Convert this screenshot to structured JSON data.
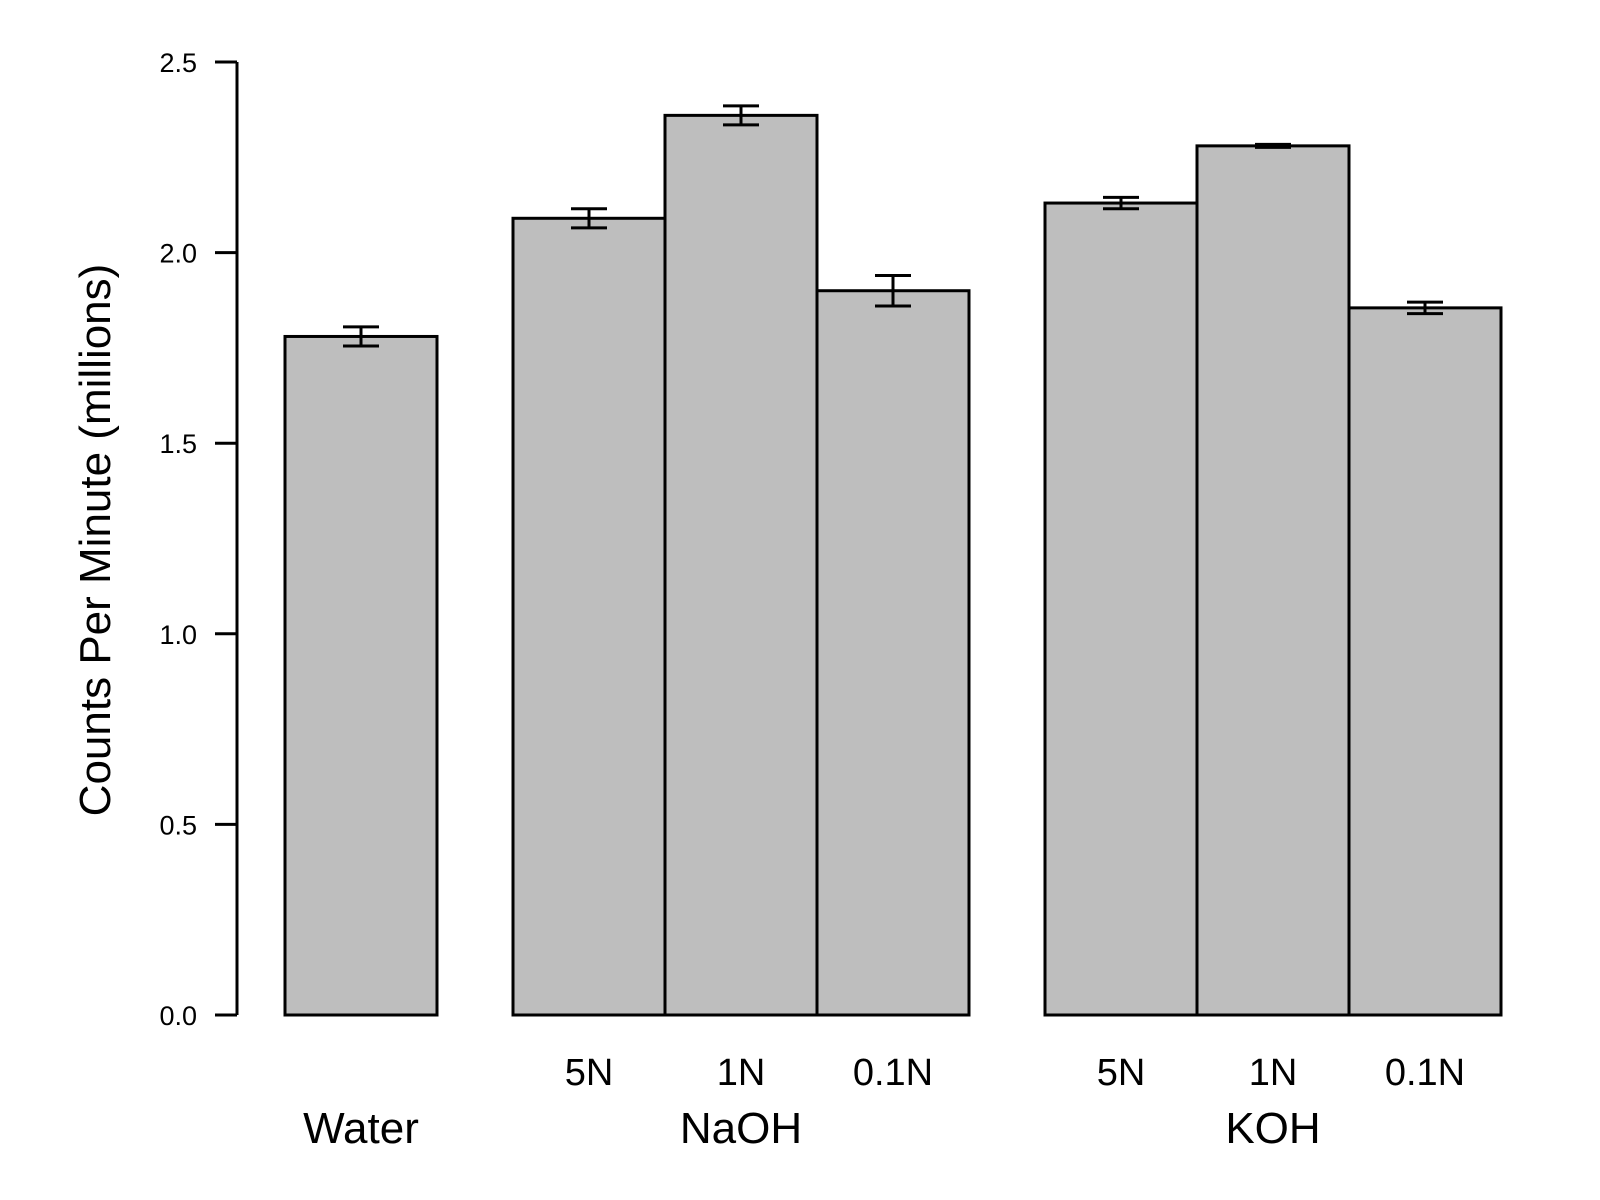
{
  "chart_data": {
    "type": "bar",
    "title": "",
    "xlabel": "",
    "ylabel": "Counts Per Minute (millions)",
    "ylim": [
      0,
      2.5
    ],
    "yticks": [
      0.0,
      0.5,
      1.0,
      1.5,
      2.0,
      2.5
    ],
    "ytick_labels": [
      "0.0",
      "0.5",
      "1.0",
      "1.5",
      "2.0",
      "2.5"
    ],
    "bar_color": "#bebebe",
    "grid": false,
    "legend": "none",
    "groups": [
      {
        "label": "Water",
        "bars": [
          {
            "label": "",
            "value": 1.78,
            "error": 0.025
          }
        ]
      },
      {
        "label": "NaOH",
        "bars": [
          {
            "label": "5N",
            "value": 2.09,
            "error": 0.025
          },
          {
            "label": "1N",
            "value": 2.36,
            "error": 0.025
          },
          {
            "label": "0.1N",
            "value": 1.9,
            "error": 0.04
          }
        ]
      },
      {
        "label": "KOH",
        "bars": [
          {
            "label": "5N",
            "value": 2.13,
            "error": 0.015
          },
          {
            "label": "1N",
            "value": 2.28,
            "error": 0.004
          },
          {
            "label": "0.1N",
            "value": 1.855,
            "error": 0.015
          }
        ]
      }
    ]
  }
}
